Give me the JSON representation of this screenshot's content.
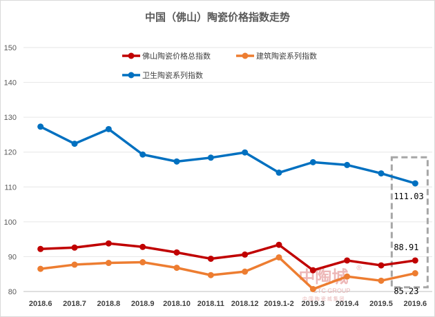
{
  "chart_data": {
    "type": "line",
    "title": "中国（佛山）陶瓷价格指数走势",
    "categories": [
      "2018.6",
      "2018.7",
      "2018.8",
      "2018.9",
      "2018.10",
      "2018.11",
      "2018.12",
      "2019.1-2",
      "2019.3",
      "2019.4",
      "2019.5",
      "2019.6"
    ],
    "ylim": [
      80,
      150
    ],
    "yticks": [
      80,
      90,
      100,
      110,
      120,
      130,
      140,
      150
    ],
    "grid": true,
    "legend": "top-center",
    "series": [
      {
        "name": "佛山陶瓷价格总指数",
        "color": "#c00000",
        "values": [
          92.2,
          92.6,
          93.8,
          92.8,
          91.2,
          89.4,
          90.6,
          93.4,
          86.1,
          88.9,
          87.5,
          88.91
        ],
        "end_label": "88.91"
      },
      {
        "name": "建筑陶瓷系列指数",
        "color": "#ed7d31",
        "values": [
          86.5,
          87.7,
          88.2,
          88.4,
          86.8,
          84.7,
          85.7,
          89.8,
          80.7,
          84.3,
          83.1,
          85.23
        ],
        "end_label": "85.23"
      },
      {
        "name": "卫生陶瓷系列指数",
        "color": "#0070c0",
        "values": [
          127.3,
          122.4,
          126.6,
          119.3,
          117.3,
          118.4,
          119.9,
          114.1,
          117.1,
          116.3,
          113.9,
          111.03
        ],
        "end_label": "111.03"
      }
    ]
  },
  "watermark": {
    "main": "中陶城",
    "sub": "CTC GROUP",
    "sub2": "中 国 陶 瓷 城 集 团",
    "mark": "®"
  }
}
